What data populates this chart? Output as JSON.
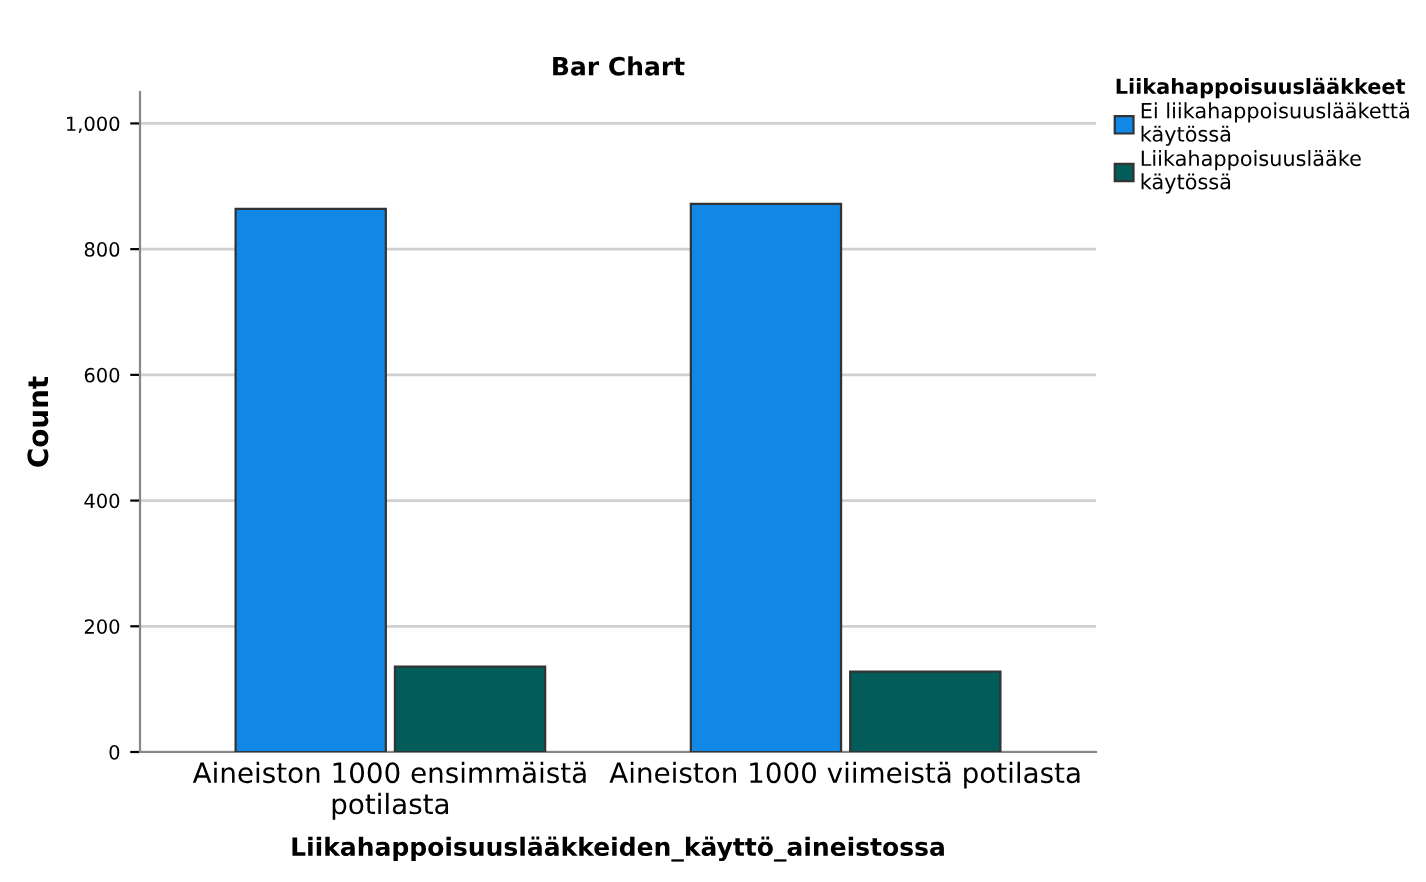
{
  "chart_data": {
    "type": "bar",
    "title": "Bar Chart",
    "xlabel": "Liikahappoisuuslääkkeiden_käyttö_aineistossa",
    "ylabel": "Count",
    "legend_title": "Liikahappoisuuslääkkeet",
    "categories": [
      "Aineiston 1000 ensimmäistä\npotilasta",
      "Aineiston 1000 viimeistä potilasta"
    ],
    "series": [
      {
        "name": "Ei liikahappoisuuslääkettä\nkäytössä",
        "color": "#1188e5",
        "values": [
          864,
          872
        ]
      },
      {
        "name": "Liikahappoisuuslääke\nkäytössä",
        "color": "#025c5a",
        "values": [
          136,
          128
        ]
      }
    ],
    "ylim": [
      0,
      1050
    ],
    "yticks": [
      {
        "value": 0,
        "label": "0"
      },
      {
        "value": 200,
        "label": "200"
      },
      {
        "value": 400,
        "label": "400"
      },
      {
        "value": 600,
        "label": "600"
      },
      {
        "value": 800,
        "label": "800"
      },
      {
        "value": 1000,
        "label": "1,000"
      }
    ],
    "grid": "y",
    "legend": "top right"
  }
}
